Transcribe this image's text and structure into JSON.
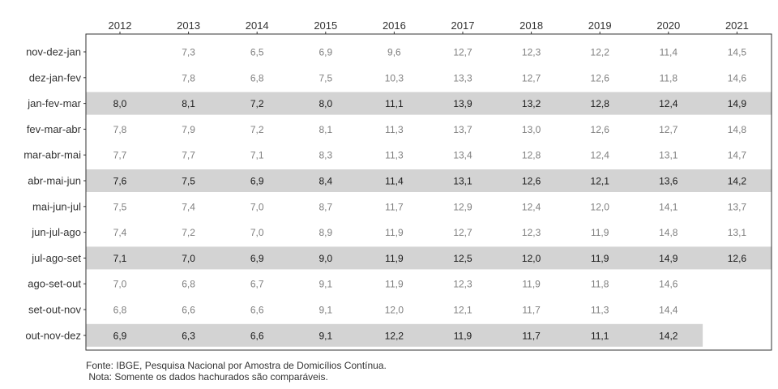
{
  "chart_data": {
    "type": "table",
    "columns": [
      "2012",
      "2013",
      "2014",
      "2015",
      "2016",
      "2017",
      "2018",
      "2019",
      "2020",
      "2021"
    ],
    "rows": [
      {
        "label": "nov-dez-jan",
        "highlight": false,
        "values": [
          "",
          "7,3",
          "6,5",
          "6,9",
          "9,6",
          "12,7",
          "12,3",
          "12,2",
          "11,4",
          "14,5"
        ]
      },
      {
        "label": "dez-jan-fev",
        "highlight": false,
        "values": [
          "",
          "7,8",
          "6,8",
          "7,5",
          "10,3",
          "13,3",
          "12,7",
          "12,6",
          "11,8",
          "14,6"
        ]
      },
      {
        "label": "jan-fev-mar",
        "highlight": true,
        "values": [
          "8,0",
          "8,1",
          "7,2",
          "8,0",
          "11,1",
          "13,9",
          "13,2",
          "12,8",
          "12,4",
          "14,9"
        ]
      },
      {
        "label": "fev-mar-abr",
        "highlight": false,
        "values": [
          "7,8",
          "7,9",
          "7,2",
          "8,1",
          "11,3",
          "13,7",
          "13,0",
          "12,6",
          "12,7",
          "14,8"
        ]
      },
      {
        "label": "mar-abr-mai",
        "highlight": false,
        "values": [
          "7,7",
          "7,7",
          "7,1",
          "8,3",
          "11,3",
          "13,4",
          "12,8",
          "12,4",
          "13,1",
          "14,7"
        ]
      },
      {
        "label": "abr-mai-jun",
        "highlight": true,
        "values": [
          "7,6",
          "7,5",
          "6,9",
          "8,4",
          "11,4",
          "13,1",
          "12,6",
          "12,1",
          "13,6",
          "14,2"
        ]
      },
      {
        "label": "mai-jun-jul",
        "highlight": false,
        "values": [
          "7,5",
          "7,4",
          "7,0",
          "8,7",
          "11,7",
          "12,9",
          "12,4",
          "12,0",
          "14,1",
          "13,7"
        ]
      },
      {
        "label": "jun-jul-ago",
        "highlight": false,
        "values": [
          "7,4",
          "7,2",
          "7,0",
          "8,9",
          "11,9",
          "12,7",
          "12,3",
          "11,9",
          "14,8",
          "13,1"
        ]
      },
      {
        "label": "jul-ago-set",
        "highlight": true,
        "values": [
          "7,1",
          "7,0",
          "6,9",
          "9,0",
          "11,9",
          "12,5",
          "12,0",
          "11,9",
          "14,9",
          "12,6"
        ]
      },
      {
        "label": "ago-set-out",
        "highlight": false,
        "values": [
          "7,0",
          "6,8",
          "6,7",
          "9,1",
          "11,9",
          "12,3",
          "11,9",
          "11,8",
          "14,6",
          ""
        ]
      },
      {
        "label": "set-out-nov",
        "highlight": false,
        "values": [
          "6,8",
          "6,6",
          "6,6",
          "9,1",
          "12,0",
          "12,1",
          "11,7",
          "11,3",
          "14,4",
          ""
        ]
      },
      {
        "label": "out-nov-dez",
        "highlight": true,
        "values": [
          "6,9",
          "6,3",
          "6,6",
          "9,1",
          "12,2",
          "11,9",
          "11,7",
          "11,1",
          "14,2",
          ""
        ]
      }
    ],
    "colors": {
      "highlight_fill": "#d3d3d3",
      "highlight_text": "#1a1a1a",
      "normal_text": "#7f7f7f",
      "axis_text": "#333333",
      "panel_border": "#333333"
    }
  },
  "footnotes": {
    "source": "Fonte: IBGE, Pesquisa Nacional por Amostra de Domicílios Contínua.",
    "note": " Nota: Somente os dados hachurados são comparáveis."
  }
}
